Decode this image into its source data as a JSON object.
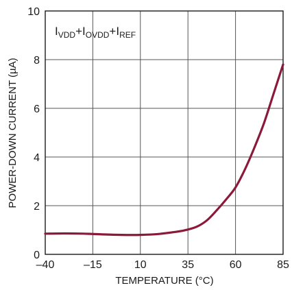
{
  "chart_data": {
    "type": "line",
    "title": "",
    "xlabel": "TEMPERATURE (°C)",
    "ylabel": "POWER-DOWN CURRENT (µA)",
    "xlim": [
      -40,
      85
    ],
    "ylim": [
      0,
      10
    ],
    "x_ticks": [
      -40,
      -15,
      10,
      35,
      60,
      85
    ],
    "x_tick_labels": [
      "–40",
      "–15",
      "10",
      "35",
      "60",
      "85"
    ],
    "y_ticks": [
      0,
      2,
      4,
      6,
      8,
      10
    ],
    "y_tick_labels": [
      "0",
      "2",
      "4",
      "6",
      "8",
      "10"
    ],
    "grid": true,
    "annotation": {
      "parts": [
        {
          "text": "I",
          "sub": false
        },
        {
          "text": "VDD",
          "sub": true
        },
        {
          "text": "+I",
          "sub": false
        },
        {
          "text": "OVDD",
          "sub": true
        },
        {
          "text": "+I",
          "sub": false
        },
        {
          "text": "REF",
          "sub": true
        }
      ]
    },
    "line_color": "#8b1a3a",
    "series": [
      {
        "x": [
          -40,
          -30,
          -20,
          -10,
          0,
          10,
          20,
          30,
          35,
          40,
          45,
          50,
          55,
          60,
          65,
          70,
          75,
          80,
          85
        ],
        "y": [
          0.85,
          0.86,
          0.85,
          0.82,
          0.8,
          0.8,
          0.84,
          0.94,
          1.02,
          1.15,
          1.4,
          1.8,
          2.25,
          2.75,
          3.5,
          4.4,
          5.4,
          6.6,
          7.8
        ]
      }
    ]
  }
}
